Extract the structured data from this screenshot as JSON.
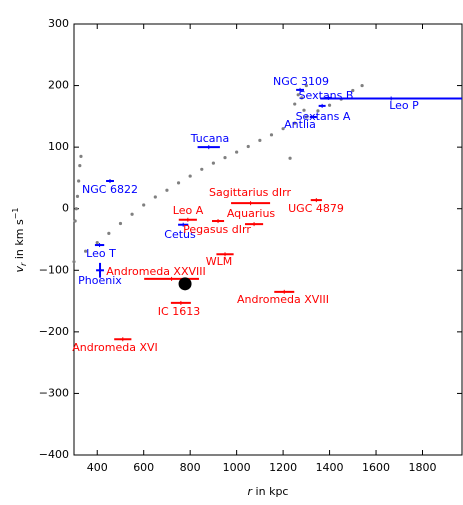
{
  "chart_data": {
    "type": "scatter",
    "xlabel": {
      "symbol": "r",
      "text": " in kpc"
    },
    "ylabel": {
      "symbol": "v",
      "subscript": "r",
      "text": " in km s",
      "superscript": "−1"
    },
    "xlim": [
      300,
      1970
    ],
    "ylim": [
      -400,
      300
    ],
    "xticks": [
      400,
      600,
      800,
      1000,
      1200,
      1400,
      1600,
      1800
    ],
    "yticks": [
      {
        "value": -400,
        "label": "−400"
      },
      {
        "value": -300,
        "label": "−300"
      },
      {
        "value": -200,
        "label": "−200"
      },
      {
        "value": -100,
        "label": "−100"
      },
      0,
      100,
      200,
      300
    ],
    "cloud": {
      "color": "#808080",
      "x": [
        300,
        350,
        400,
        450,
        500,
        550,
        600,
        650,
        700,
        750,
        800,
        850,
        900,
        950,
        1000,
        1050,
        1100,
        1150,
        1200,
        1250,
        1300,
        1350,
        1400,
        1450,
        1500,
        1540,
        305,
        310,
        315,
        320,
        325,
        330,
        1250,
        1265,
        1280,
        1290,
        1300,
        1230
      ],
      "y": [
        -86,
        -69,
        -55,
        -40,
        -24,
        -9,
        6,
        19,
        30,
        42,
        53,
        64,
        74,
        83,
        92,
        101,
        111,
        120,
        130,
        139,
        149,
        159,
        168,
        178,
        192,
        200,
        -20,
        0,
        20,
        45,
        70,
        85,
        170,
        185,
        180,
        160,
        200,
        82
      ]
    },
    "galaxies": [
      {
        "name": "NGC 3109",
        "color": "#0000ff",
        "r": 1273,
        "v": 193,
        "xerr": 17
      },
      {
        "name": "Sextans B",
        "color": "#0000ff",
        "r": 1395,
        "v": 180,
        "xerr": 15
      },
      {
        "name": "Sextans A",
        "color": "#0000ff",
        "r": 1368,
        "v": 167,
        "xerr": 15
      },
      {
        "name": "Antlia",
        "color": "#0000ff",
        "r": 1330,
        "v": 149,
        "xerr": 15
      },
      {
        "name": "Leo P",
        "color": "#0000ff",
        "r": 1665,
        "v": 179,
        "xerr": 305
      },
      {
        "name": "Tucana",
        "color": "#0000ff",
        "r": 880,
        "v": 100,
        "xerr": 48
      },
      {
        "name": "NGC 6822",
        "color": "#0000ff",
        "r": 455,
        "v": 45,
        "xerr": 17
      },
      {
        "name": "Leo T",
        "color": "#0000ff",
        "r": 410,
        "v": -59,
        "xerr": 20
      },
      {
        "name": "Phoenix",
        "color": "#0000ff",
        "r": 412,
        "v": -100,
        "xerr": 17,
        "yerr": 12
      },
      {
        "name": "Cetus",
        "color": "#0000ff",
        "r": 770,
        "v": -26,
        "xerr": 22
      },
      {
        "name": "Sagittarius dIrr",
        "color": "#ff0000",
        "r": 1060,
        "v": 9,
        "xerr": 84
      },
      {
        "name": "UGC 4879",
        "color": "#ff0000",
        "r": 1343,
        "v": 14,
        "xerr": 24
      },
      {
        "name": "Leo A",
        "color": "#ff0000",
        "r": 790,
        "v": -18,
        "xerr": 39
      },
      {
        "name": "Pegasus dIrr",
        "color": "#ff0000",
        "r": 920,
        "v": -20,
        "xerr": 26
      },
      {
        "name": "Aquarius",
        "color": "#ff0000",
        "r": 1075,
        "v": -25,
        "xerr": 39
      },
      {
        "name": "WLM",
        "color": "#ff0000",
        "r": 950,
        "v": -74,
        "xerr": 37
      },
      {
        "name": "Andromeda XXVIII",
        "color": "#ff0000",
        "r": 720,
        "v": -114,
        "xerr": 118
      },
      {
        "name": "IC 1613",
        "color": "#ff0000",
        "r": 760,
        "v": -153,
        "xerr": 43
      },
      {
        "name": "Andromeda XVIII",
        "color": "#ff0000",
        "r": 1205,
        "v": -135,
        "xerr": 43
      },
      {
        "name": "Andromeda XVI",
        "color": "#ff0000",
        "r": 510,
        "v": -212,
        "xerr": 37
      }
    ],
    "marker": {
      "color": "#000000",
      "r": 778,
      "v": -122
    }
  }
}
